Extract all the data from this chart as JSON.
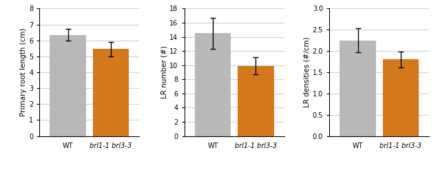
{
  "charts": [
    {
      "ylabel": "Primary root length (cm)",
      "categories": [
        "WT",
        "brl1-1 brl3-3"
      ],
      "values": [
        6.35,
        5.45
      ],
      "errors": [
        0.35,
        0.45
      ],
      "ylim": [
        0,
        8
      ],
      "yticks": [
        0,
        1,
        2,
        3,
        4,
        5,
        6,
        7,
        8
      ],
      "bar_colors": [
        "#b8b8b8",
        "#d4781e"
      ]
    },
    {
      "ylabel": "LR number (#)",
      "categories": [
        "WT",
        "brl1-1 brl3-3"
      ],
      "values": [
        14.5,
        9.9
      ],
      "errors": [
        2.2,
        1.2
      ],
      "ylim": [
        0,
        18
      ],
      "yticks": [
        0,
        2,
        4,
        6,
        8,
        10,
        12,
        14,
        16,
        18
      ],
      "bar_colors": [
        "#b8b8b8",
        "#d4781e"
      ]
    },
    {
      "ylabel": "LR densities (#/cm)",
      "categories": [
        "WT",
        "brl1-1 brl3-3"
      ],
      "values": [
        2.25,
        1.8
      ],
      "errors": [
        0.28,
        0.18
      ],
      "ylim": [
        0.0,
        3.0
      ],
      "yticks": [
        0.0,
        0.5,
        1.0,
        1.5,
        2.0,
        2.5,
        3.0
      ],
      "bar_colors": [
        "#b8b8b8",
        "#d4781e"
      ]
    }
  ],
  "background_color": "#ffffff",
  "grid_color": "#d0d0d0",
  "bar_width": 0.38,
  "bar_positions": [
    0.3,
    0.75
  ],
  "xlim": [
    0.0,
    1.05
  ],
  "tick_fontsize": 7,
  "ylabel_fontsize": 7.5,
  "xtick_label_fontsize": 7
}
